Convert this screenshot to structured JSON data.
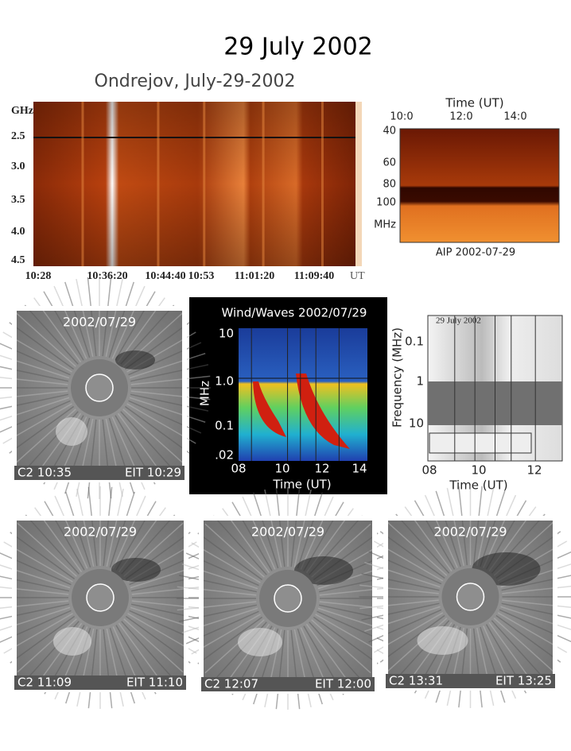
{
  "title": "29 July 2002",
  "ondrejov": {
    "title": "Ondrejov, July-29-2002",
    "y_unit": "GHz",
    "y_labels": [
      "2.5",
      "3.0",
      "3.5",
      "4.0",
      "4.5"
    ],
    "x_labels": [
      "10:28",
      "10:36:20",
      "10:44:40",
      "10:53",
      "11:01:20",
      "11:09:40"
    ],
    "x_unit": "UT"
  },
  "aip": {
    "x_title": "Time (UT)",
    "x_labels": [
      "10:0",
      "12:0",
      "14:0"
    ],
    "y_labels": [
      "40",
      "60",
      "80",
      "100"
    ],
    "y_unit": "MHz",
    "caption": "AIP 2002-07-29"
  },
  "wind": {
    "title": "Wind/Waves 2002/07/29",
    "y_title": "MHz",
    "y_labels": [
      "10",
      "1.0",
      "0.1",
      ".02"
    ],
    "x_labels": [
      "08",
      "10",
      "12",
      "14"
    ],
    "x_title": "Time (UT)"
  },
  "nancay": {
    "title": "29 July 2002",
    "y_title": "Frequency (MHz)",
    "y_labels": [
      "0.1",
      "1",
      "10"
    ],
    "x_labels": [
      "08",
      "10",
      "12"
    ],
    "x_title": "Time (UT)"
  },
  "lasco_panels": [
    {
      "date": "2002/07/29",
      "c2": "C2 10:35",
      "eit": "EIT 10:29"
    },
    {
      "date": "2002/07/29",
      "c2": "C2 11:09",
      "eit": "EIT 11:10"
    },
    {
      "date": "2002/07/29",
      "c2": "C2 12:07",
      "eit": "EIT 12:00"
    },
    {
      "date": "2002/07/29",
      "c2": "C2 13:31",
      "eit": "EIT  13:25"
    }
  ]
}
